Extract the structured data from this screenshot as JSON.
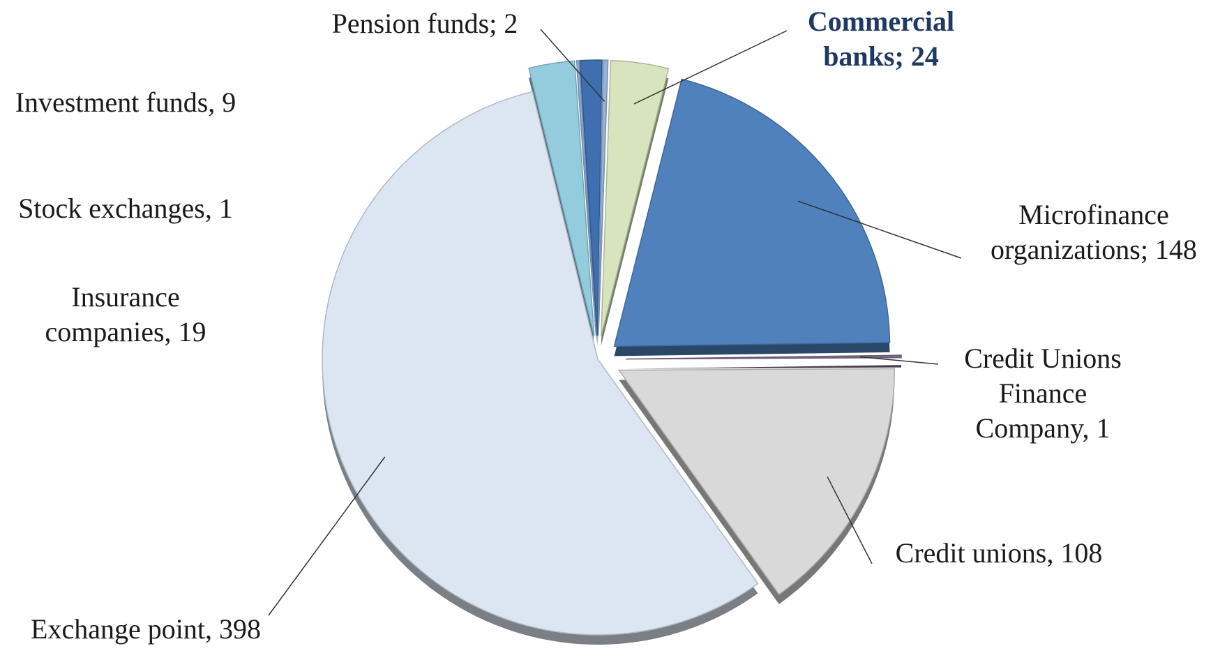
{
  "chart_data": {
    "type": "pie",
    "values": [
      24,
      148,
      1,
      108,
      398,
      19,
      1,
      9,
      2
    ],
    "value_labels": [
      "Commercial banks; 24",
      "Microfinance organizations; 148",
      "Credit Unions Finance Company, 1",
      "Credit unions, 108",
      "Exchange point, 398",
      "Insurance companies, 19",
      "Stock exchanges, 1",
      "Investment funds, 9",
      "Pension funds; 2"
    ],
    "colors": [
      "#d7e4bd",
      "#4f81bd",
      "#7f6f8f",
      "#d9d9d9",
      "#dce6f2",
      "#93cddd",
      "#8eb4e3",
      "#3f6fb0",
      "#95b3d7"
    ]
  }
}
